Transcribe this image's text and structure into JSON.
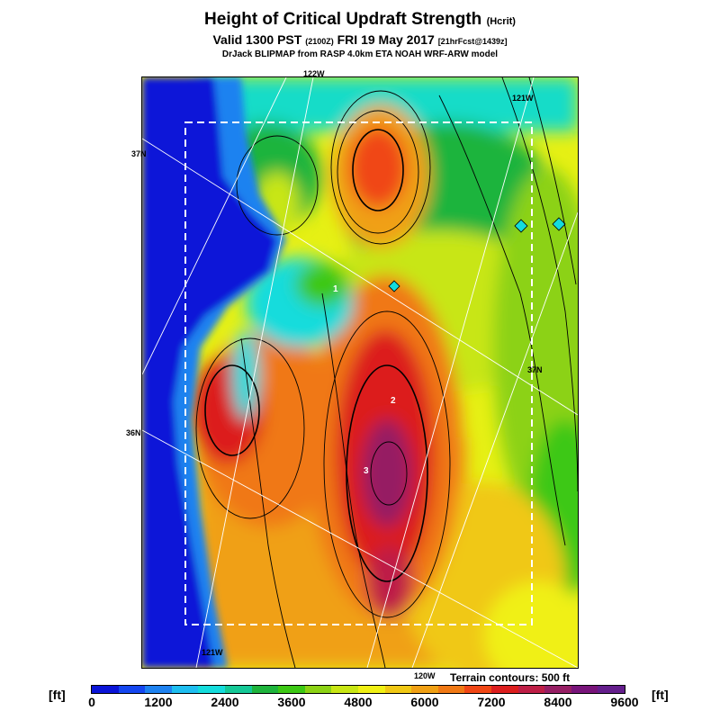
{
  "header": {
    "title": "Height of Critical Updraft Strength",
    "title_tag": "(Hcrit)",
    "valid_text": "Valid 1300 PST",
    "valid_utc": "(2100Z)",
    "date": "FRI 19 May 2017",
    "forecast_tag": "[21hrFcst@1439z]",
    "credit": "DrJack BLIPMAP from RASP 4.0km ETA NOAH WRF-ARW model"
  },
  "map": {
    "lon_labels": [
      "122W",
      "121W",
      "121W",
      "120W"
    ],
    "lat_labels": [
      "37N",
      "37N",
      "36N"
    ],
    "marker_labels": [
      "1",
      "2",
      "3"
    ],
    "terrain_note": "Terrain contours: 500 ft"
  },
  "legend": {
    "unit": "[ft]",
    "ticks": [
      "0",
      "1200",
      "2400",
      "3600",
      "4800",
      "6000",
      "7200",
      "8400",
      "9600"
    ],
    "colors": [
      "#0a14d8",
      "#1446f0",
      "#1e82f0",
      "#1ebef0",
      "#14dcdc",
      "#14c896",
      "#1eb43c",
      "#3cc814",
      "#8cd214",
      "#c8e614",
      "#f0f014",
      "#f0c814",
      "#f0a014",
      "#f07814",
      "#f04614",
      "#dc1e1e",
      "#be1e46",
      "#961e64",
      "#78147a",
      "#641e8c"
    ]
  }
}
